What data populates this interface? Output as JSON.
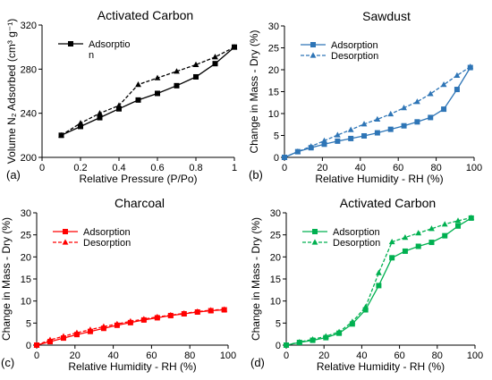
{
  "chart_data": [
    {
      "panel_letter": "(a)",
      "type": "line",
      "title": "Activated Carbon",
      "xlabel": "Relative Pressure (P/Po)",
      "ylabel": "Volume N₂ Adsorbed (cm³ g⁻¹)",
      "xlim": [
        0,
        1
      ],
      "ylim": [
        200,
        320
      ],
      "xticks": [
        "0",
        "0.2",
        "0.4",
        "0.6",
        "0.8",
        "1"
      ],
      "yticks": [
        "200",
        "240",
        "280",
        "320"
      ],
      "legend": {
        "position": "top-left",
        "entries": [
          "Adsorptio",
          "n"
        ]
      },
      "color": "#000000",
      "series": [
        {
          "name": "Adsorption",
          "marker": "square",
          "dashed": false,
          "x": [
            0.1,
            0.2,
            0.3,
            0.4,
            0.5,
            0.6,
            0.7,
            0.8,
            0.9,
            1.0
          ],
          "y": [
            220,
            228,
            236,
            244,
            252,
            258,
            265,
            273,
            285,
            300
          ]
        },
        {
          "name": "",
          "marker": "triangle",
          "dashed": true,
          "x": [
            0.1,
            0.2,
            0.3,
            0.4,
            0.5,
            0.6,
            0.7,
            0.8,
            0.9,
            1.0
          ],
          "y": [
            220,
            231,
            240,
            247,
            266,
            272,
            278,
            284,
            291,
            300
          ]
        }
      ]
    },
    {
      "panel_letter": "(b)",
      "type": "line",
      "title": "Sawdust",
      "xlabel": "Relative Humidity - RH (%)",
      "ylabel": "Change in Mass - Dry (%)",
      "xlim": [
        0,
        100
      ],
      "ylim": [
        0,
        30
      ],
      "xticks": [
        "0",
        "20",
        "40",
        "60",
        "80",
        "100"
      ],
      "yticks": [
        "0",
        "5",
        "10",
        "15",
        "20",
        "25",
        "30"
      ],
      "legend": {
        "position": "top-left",
        "entries": [
          "Adsorption",
          "Desorption"
        ]
      },
      "color": "#2e75b6",
      "series": [
        {
          "name": "Adsorption",
          "marker": "square",
          "dashed": false,
          "x": [
            0,
            7,
            14,
            21,
            28,
            35,
            42,
            49,
            56,
            63,
            70,
            77,
            84,
            91,
            98
          ],
          "y": [
            0,
            1.3,
            2.2,
            3.0,
            3.7,
            4.3,
            4.9,
            5.6,
            6.4,
            7.2,
            8.1,
            9.1,
            11.0,
            15.5,
            20.5
          ]
        },
        {
          "name": "Desorption",
          "marker": "triangle",
          "dashed": true,
          "x": [
            0,
            7,
            14,
            21,
            28,
            35,
            42,
            49,
            56,
            63,
            70,
            77,
            84,
            91,
            98
          ],
          "y": [
            0,
            1.3,
            2.5,
            3.8,
            5.1,
            6.3,
            7.6,
            8.7,
            9.9,
            11.3,
            12.7,
            14.5,
            16.6,
            18.7,
            20.7
          ]
        }
      ]
    },
    {
      "panel_letter": "(c)",
      "type": "line",
      "title": "Charcoal",
      "xlabel": "Relative Humidity - RH (%)",
      "ylabel": "Change in Mass - Dry (%)",
      "xlim": [
        0,
        100
      ],
      "ylim": [
        0,
        30
      ],
      "xticks": [
        "0",
        "20",
        "40",
        "60",
        "80",
        "100"
      ],
      "yticks": [
        "0",
        "5",
        "10",
        "15",
        "20",
        "25",
        "30"
      ],
      "legend": {
        "position": "top-left",
        "entries": [
          "Adsorption",
          "Desorption"
        ]
      },
      "color": "#ff0000",
      "series": [
        {
          "name": "Adsorption",
          "marker": "square",
          "dashed": false,
          "x": [
            0,
            7,
            14,
            21,
            28,
            35,
            42,
            49,
            56,
            63,
            70,
            77,
            84,
            91,
            98
          ],
          "y": [
            0,
            0.8,
            1.6,
            2.4,
            3.1,
            3.8,
            4.5,
            5.1,
            5.7,
            6.2,
            6.7,
            7.1,
            7.5,
            7.8,
            8.0
          ]
        },
        {
          "name": "Desorption",
          "marker": "triangle",
          "dashed": true,
          "x": [
            0,
            7,
            14,
            21,
            28,
            35,
            42,
            49,
            56,
            63,
            70,
            77,
            84,
            91,
            98
          ],
          "y": [
            0,
            1.2,
            2.0,
            2.8,
            3.5,
            4.2,
            4.8,
            5.4,
            5.9,
            6.4,
            6.8,
            7.2,
            7.6,
            7.9,
            8.1
          ]
        }
      ]
    },
    {
      "panel_letter": "(d)",
      "type": "line",
      "title": "Activated Carbon",
      "xlabel": "Relative Humidity - RH (%)",
      "ylabel": "Change in Mass - Dry (%)",
      "xlim": [
        0,
        100
      ],
      "ylim": [
        0,
        30
      ],
      "xticks": [
        "0",
        "20",
        "40",
        "60",
        "80",
        "100"
      ],
      "yticks": [
        "0",
        "5",
        "10",
        "15",
        "20",
        "25",
        "30"
      ],
      "legend": {
        "position": "top-left",
        "entries": [
          "Adsorption",
          "Desorption"
        ]
      },
      "color": "#00b050",
      "series": [
        {
          "name": "Adsorption",
          "marker": "square",
          "dashed": false,
          "x": [
            0,
            7,
            14,
            21,
            28,
            35,
            42,
            49,
            56,
            63,
            70,
            77,
            84,
            91,
            98
          ],
          "y": [
            0,
            0.6,
            1.1,
            1.7,
            2.7,
            4.8,
            8.0,
            13.5,
            19.8,
            21.3,
            22.4,
            23.3,
            24.8,
            27.0,
            28.8
          ]
        },
        {
          "name": "Desorption",
          "marker": "triangle",
          "dashed": true,
          "x": [
            0,
            7,
            14,
            21,
            28,
            35,
            42,
            49,
            56,
            63,
            70,
            77,
            84,
            91,
            98
          ],
          "y": [
            0,
            0.7,
            1.3,
            2.0,
            3.0,
            5.3,
            8.6,
            16.4,
            23.4,
            24.4,
            25.4,
            26.4,
            27.4,
            28.2,
            28.9
          ]
        }
      ]
    }
  ]
}
